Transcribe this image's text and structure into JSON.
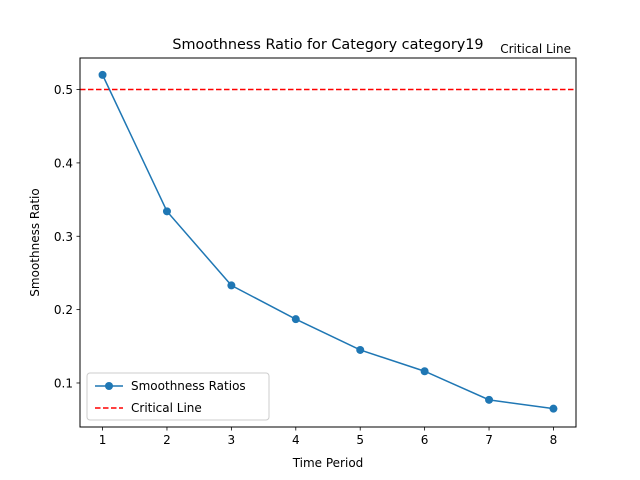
{
  "chart_data": {
    "type": "line",
    "title": "Smoothness Ratio for Category category19",
    "xlabel": "Time Period",
    "ylabel": "Smoothness Ratio",
    "xlim": [
      0.65,
      8.35
    ],
    "ylim": [
      0.04,
      0.543
    ],
    "x": [
      1,
      2,
      3,
      4,
      5,
      6,
      7,
      8
    ],
    "xticks": [
      1,
      2,
      3,
      4,
      5,
      6,
      7,
      8
    ],
    "yticks": [
      0.1,
      0.2,
      0.3,
      0.4,
      0.5
    ],
    "ytick_labels": [
      "0.1",
      "0.2",
      "0.3",
      "0.4",
      "0.5"
    ],
    "series": [
      {
        "name": "Smoothness Ratios",
        "values": [
          0.52,
          0.334,
          0.233,
          0.187,
          0.145,
          0.116,
          0.077,
          0.065
        ],
        "color": "#1f77b4",
        "marker": "circle"
      }
    ],
    "reference_line": {
      "name": "Critical Line",
      "value": 0.5,
      "color": "#ff0000",
      "style": "dashed",
      "annotation": "Critical Line"
    },
    "grid": false,
    "legend": "bottom-left"
  }
}
